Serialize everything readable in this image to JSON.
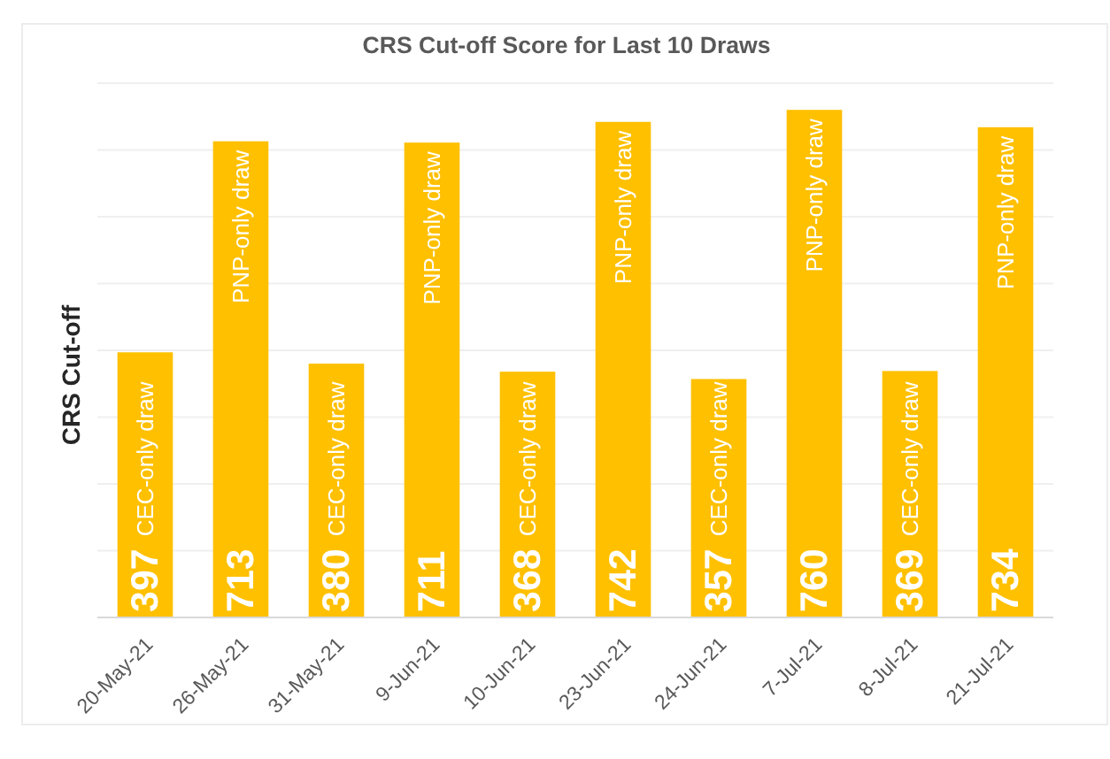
{
  "chart_data": {
    "type": "bar",
    "title": "CRS Cut-off Score for Last 10 Draws",
    "ylabel": "CRS Cut-off",
    "categories": [
      "20-May-21",
      "26-May-21",
      "31-May-21",
      "9-Jun-21",
      "10-Jun-21",
      "23-Jun-21",
      "24-Jun-21",
      "7-Jul-21",
      "8-Jul-21",
      "21-Jul-21"
    ],
    "values": [
      397,
      713,
      380,
      711,
      368,
      742,
      357,
      760,
      369,
      734
    ],
    "color": "#ffc000",
    "ylim": [
      0,
      800
    ],
    "yticks": [
      {
        "value": 0,
        "label": null
      },
      {
        "value": 100,
        "label": null
      },
      {
        "value": 200,
        "label": null
      },
      {
        "value": 300,
        "label": null
      },
      {
        "value": 400,
        "label": null
      },
      {
        "value": 500,
        "label": null
      },
      {
        "value": 600,
        "label": null
      },
      {
        "value": 700,
        "label": null
      },
      {
        "value": 800,
        "label": null
      }
    ],
    "grid": "y",
    "tick_labels": "x",
    "data_labels": true,
    "annotations": [
      "CEC-only draw",
      "PNP-only draw",
      "CEC-only draw",
      "PNP-only draw",
      "CEC-only draw",
      "PNP-only draw",
      "CEC-only draw",
      "PNP-only draw",
      "CEC-only draw",
      "PNP-only draw"
    ]
  }
}
